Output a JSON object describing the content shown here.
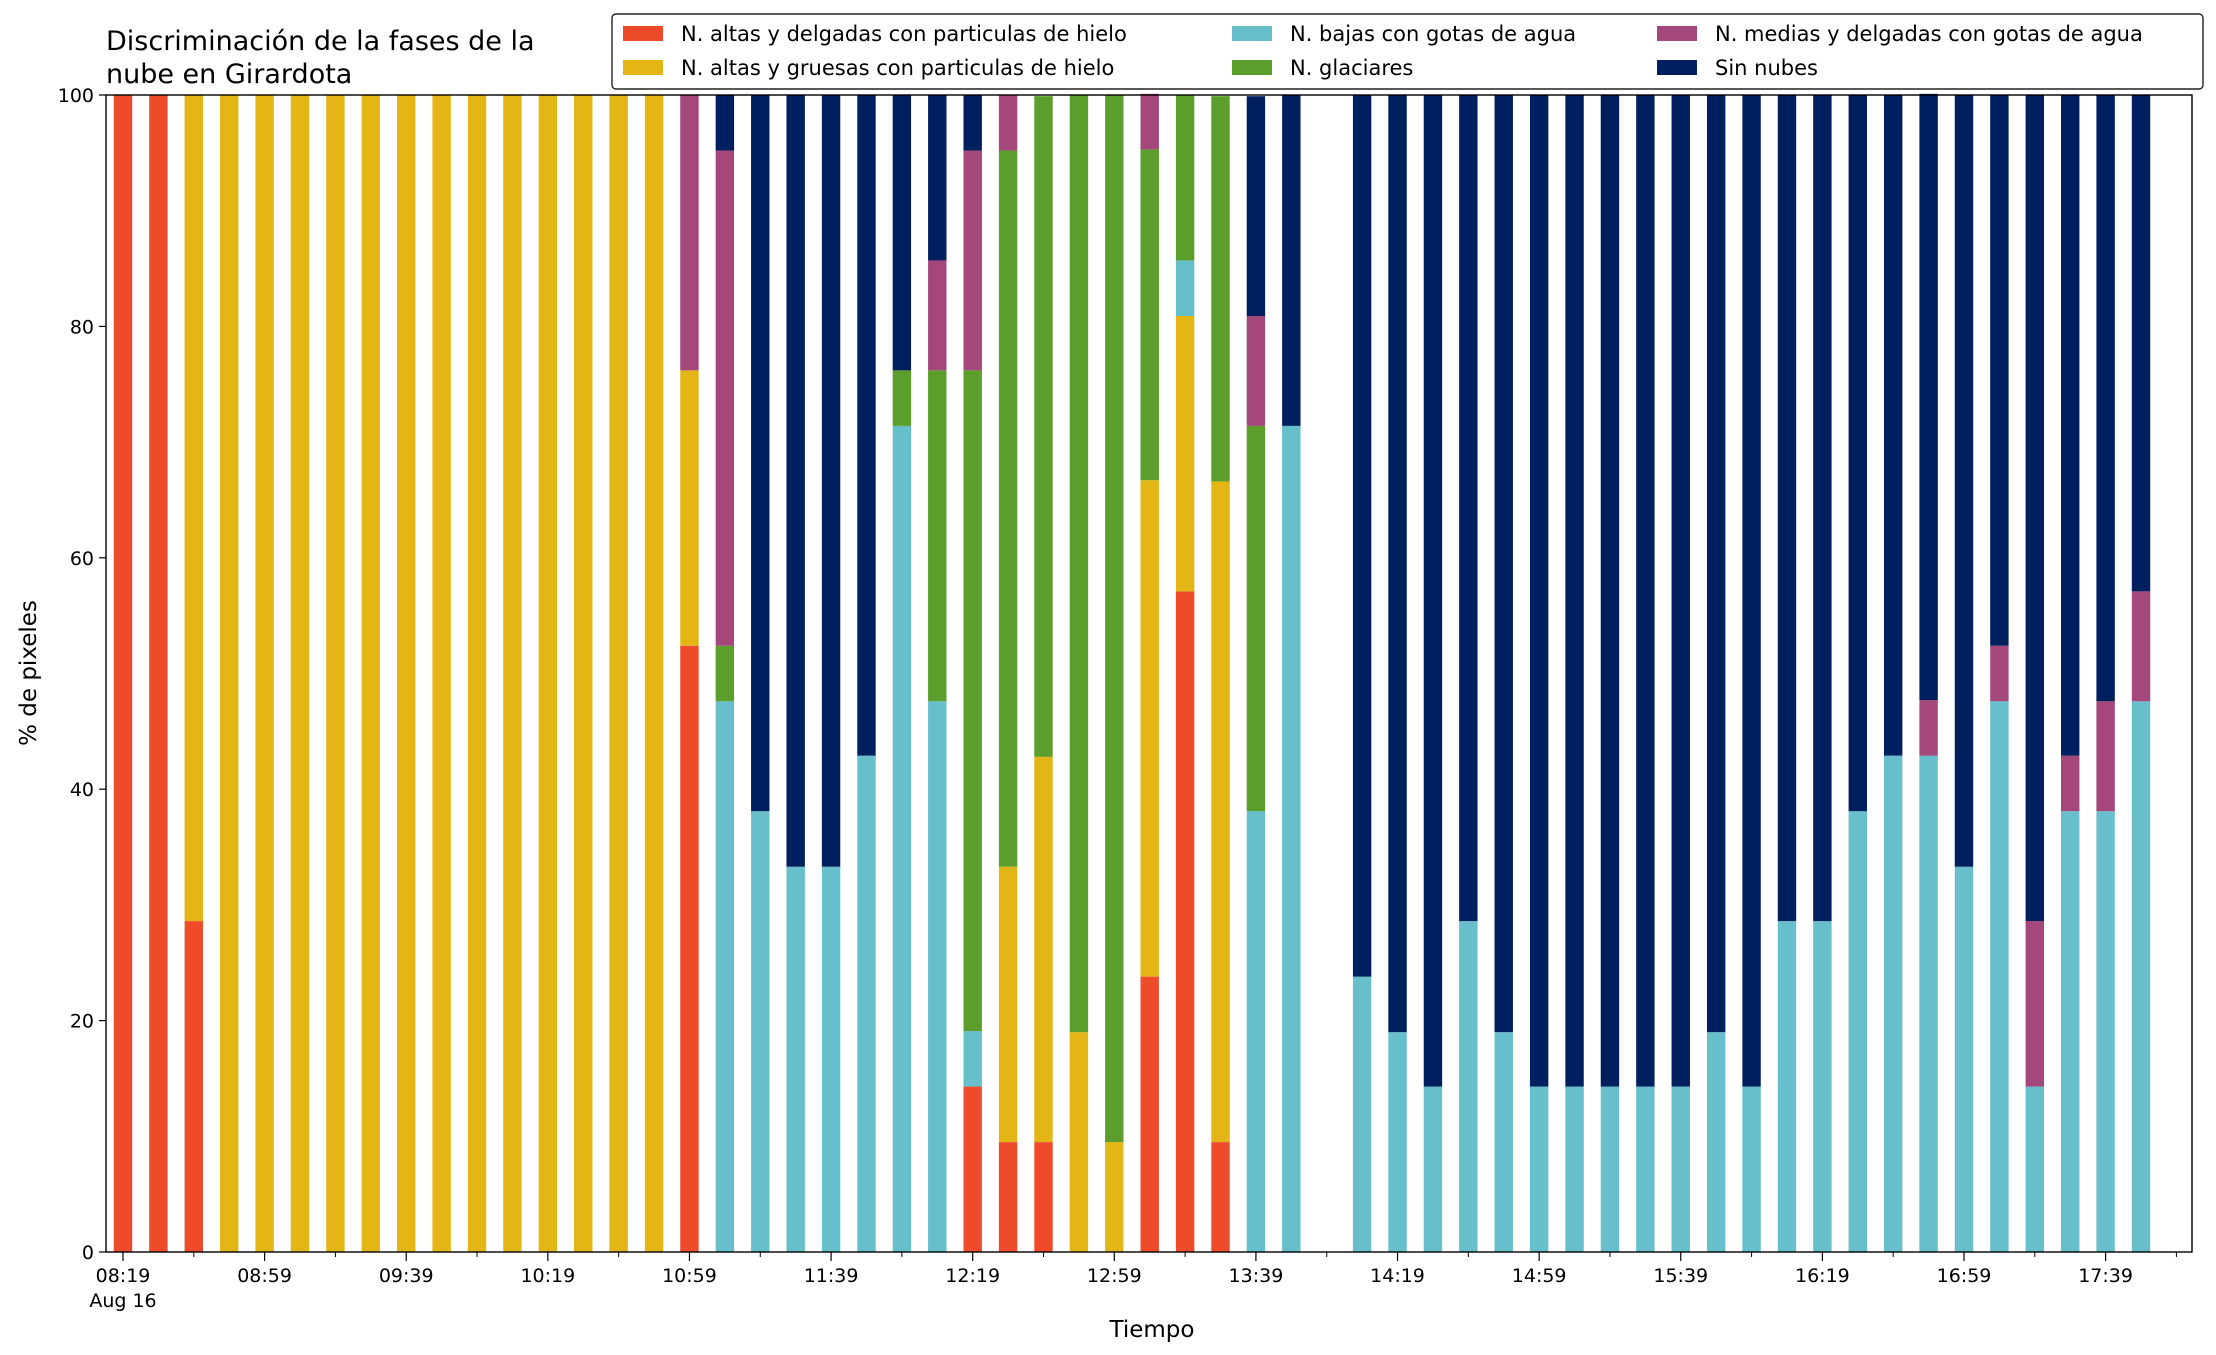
{
  "chart_data": {
    "type": "stacked_bar",
    "title": [
      "Discriminación de la fases de la",
      "nube en Girardota"
    ],
    "x_label": "Tiempo",
    "y_label": "% de pixeles",
    "date": "Aug 16",
    "categories": [
      "08:19",
      "08:29",
      "08:39",
      "08:49",
      "08:59",
      "09:09",
      "09:19",
      "09:29",
      "09:39",
      "09:49",
      "09:59",
      "10:09",
      "10:19",
      "10:29",
      "10:39",
      "10:49",
      "10:59",
      "11:09",
      "11:19",
      "11:29",
      "11:39",
      "11:49",
      "11:59",
      "12:09",
      "12:19",
      "12:29",
      "12:39",
      "12:49",
      "12:59",
      "13:09",
      "13:19",
      "13:29",
      "13:39",
      "13:49",
      "13:59",
      "14:09",
      "14:19",
      "14:29",
      "14:39",
      "14:49",
      "14:59",
      "15:09",
      "15:19",
      "15:29",
      "15:39",
      "15:49",
      "15:59",
      "16:09",
      "16:19",
      "16:29",
      "16:39",
      "16:49",
      "16:59",
      "17:09",
      "17:19",
      "17:29",
      "17:39",
      "17:49"
    ],
    "ylim": [
      0,
      100
    ],
    "yticks": [
      0,
      20,
      40,
      60,
      80,
      100
    ],
    "legend": "top-right",
    "series": [
      {
        "name": "N. altas y delgadas con particulas de hielo",
        "color": "#ee4b2b",
        "values": [
          100,
          100,
          28.6,
          0,
          0,
          0,
          0,
          0,
          0,
          0,
          0,
          0,
          0,
          0,
          0,
          0,
          52.4,
          0,
          0,
          0,
          0,
          0,
          0,
          0,
          14.3,
          9.5,
          9.5,
          0,
          0,
          23.8,
          57.1,
          9.5,
          0,
          0,
          0,
          0,
          0,
          0,
          0,
          0,
          0,
          0,
          0,
          0,
          0,
          0,
          0,
          0,
          0,
          0,
          0,
          0,
          0,
          0,
          0,
          0,
          0,
          0
        ]
      },
      {
        "name": "N. altas y gruesas con particulas de hielo",
        "color": "#e3b616",
        "values": [
          0,
          0,
          71.4,
          100,
          100,
          100,
          100,
          100,
          100,
          100,
          100,
          100,
          100,
          100,
          100,
          100,
          23.8,
          0,
          0,
          0,
          0,
          0,
          0,
          0,
          0,
          23.8,
          33.3,
          19.0,
          9.5,
          42.9,
          23.8,
          57.1,
          0,
          0,
          0,
          0,
          0,
          0,
          0,
          0,
          0,
          0,
          0,
          0,
          0,
          0,
          0,
          0,
          0,
          0,
          0,
          0,
          0,
          0,
          0,
          0,
          0,
          0
        ]
      },
      {
        "name": "N. bajas con gotas de agua",
        "color": "#67bfcb",
        "values": [
          0,
          0,
          0,
          0,
          0,
          0,
          0,
          0,
          0,
          0,
          0,
          0,
          0,
          0,
          0,
          0,
          0,
          47.6,
          38.1,
          33.3,
          33.3,
          42.9,
          71.4,
          47.6,
          4.8,
          0,
          0,
          0,
          0,
          0,
          4.8,
          0,
          38.1,
          71.4,
          0,
          23.8,
          19.0,
          14.3,
          28.6,
          19.0,
          14.3,
          14.3,
          14.3,
          14.3,
          14.3,
          19.0,
          14.3,
          28.6,
          28.6,
          38.1,
          42.9,
          42.9,
          33.3,
          47.6,
          14.3,
          38.1,
          38.1,
          47.6
        ]
      },
      {
        "name": "N. glaciares",
        "color": "#5b9e2b",
        "values": [
          0,
          0,
          0,
          0,
          0,
          0,
          0,
          0,
          0,
          0,
          0,
          0,
          0,
          0,
          0,
          0,
          0,
          4.8,
          0,
          0,
          0,
          0,
          4.8,
          28.6,
          57.1,
          61.9,
          57.1,
          81.0,
          90.5,
          28.6,
          14.3,
          33.3,
          33.3,
          0,
          0,
          0,
          0,
          0,
          0,
          0,
          0,
          0,
          0,
          0,
          0,
          0,
          0,
          0,
          0,
          0,
          0,
          0,
          0,
          0,
          0,
          0,
          0,
          0
        ]
      },
      {
        "name": "N. medias y delgadas con gotas de agua",
        "color": "#a4477a",
        "values": [
          0,
          0,
          0,
          0,
          0,
          0,
          0,
          0,
          0,
          0,
          0,
          0,
          0,
          0,
          0,
          0,
          23.8,
          42.8,
          0,
          0,
          0,
          0,
          0,
          9.5,
          19.0,
          4.8,
          0,
          0,
          0,
          4.8,
          0,
          0,
          9.5,
          0,
          0,
          0,
          0,
          0,
          0,
          0,
          0,
          0,
          0,
          0,
          0,
          0,
          0,
          0,
          0,
          0,
          0,
          4.8,
          0,
          4.8,
          14.3,
          4.8,
          9.5,
          9.5
        ]
      },
      {
        "name": "Sin nubes",
        "color": "#001f5f",
        "values": [
          0,
          0,
          0,
          0,
          0,
          0,
          0,
          0,
          0,
          0,
          0,
          0,
          0,
          0,
          0,
          0,
          0,
          4.8,
          61.9,
          66.7,
          66.7,
          57.1,
          23.8,
          14.3,
          4.8,
          0,
          0,
          0,
          0,
          0,
          0,
          0,
          19.0,
          28.6,
          0,
          76.2,
          81.0,
          85.7,
          71.4,
          81.0,
          85.7,
          85.7,
          85.7,
          85.7,
          85.7,
          81.0,
          85.7,
          71.4,
          71.4,
          61.9,
          57.1,
          52.4,
          66.7,
          47.6,
          71.4,
          57.1,
          52.4,
          42.9
        ]
      }
    ]
  }
}
